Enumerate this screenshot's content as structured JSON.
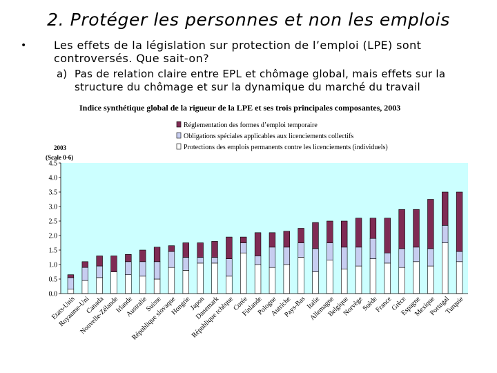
{
  "slide": {
    "title": "2. Protéger les personnes et non les emplois",
    "bullet": "•",
    "point": "Les effets de la législation sur  protection de l’emploi (LPE) sont controversés. Que sait-on?",
    "sub_letter": "a)",
    "sub_point": "Pas de relation claire entre EPL et chômage global, mais effets sur la structure du chômage et sur la dynamique du marché du travail"
  },
  "colors": {
    "plot_bg": "#ccffff",
    "temporary": "#7f2b54",
    "collective": "#c7cdf0",
    "individual": "#ffffff"
  },
  "chart_data": {
    "type": "bar",
    "stacked": true,
    "title": "Indice synthétique global de la rigueur de la LPE et ses trois principales composantes, 2003",
    "ylabel": "2003",
    "ylabel_sub": "(Scale 0-6)",
    "ylim": [
      0,
      4.5
    ],
    "yticks": [
      "0.0",
      "0.5",
      "1.0",
      "1.5",
      "2.0",
      "2.5",
      "3.0",
      "3.5",
      "4.0",
      "4.5"
    ],
    "legend": [
      "Réglementation des formes d’emploi temporaire",
      "Obligations spéciales applicables aux licenciements collectifs",
      "Protections des emplois permanents contre les licenciements (individuels)"
    ],
    "categories": [
      "Etats-Unis",
      "Royaume-Uni",
      "Canada",
      "Nouvelle-Zélande",
      "Irlande",
      "Australie",
      "Suisse",
      "République slovaque",
      "Hongrie",
      "Japon",
      "Danemark",
      "République tchèque",
      "Corée",
      "Finlande",
      "Pologne",
      "Autriche",
      "Pays-Bas",
      "Italie",
      "Allemagne",
      "Belgique",
      "Norvège",
      "Suède",
      "France",
      "Grèce",
      "Espagne",
      "Mexique",
      "Portugal",
      "Turquie"
    ],
    "series": [
      {
        "name": "Protections des emplois permanents contre les licenciements (individuels)",
        "values": [
          0.15,
          0.45,
          0.55,
          0.75,
          0.65,
          0.6,
          0.5,
          0.9,
          0.8,
          1.05,
          1.05,
          0.6,
          1.4,
          1.0,
          0.9,
          1.0,
          1.25,
          0.75,
          1.15,
          0.85,
          0.95,
          1.2,
          1.05,
          0.9,
          1.1,
          0.95,
          1.75,
          1.1
        ]
      },
      {
        "name": "Obligations spéciales applicables aux licenciements collectifs",
        "values": [
          0.4,
          0.45,
          0.4,
          0.0,
          0.45,
          0.5,
          0.6,
          0.55,
          0.45,
          0.2,
          0.2,
          0.6,
          0.35,
          0.3,
          0.7,
          0.6,
          0.5,
          0.8,
          0.6,
          0.75,
          0.65,
          0.7,
          0.35,
          0.65,
          0.5,
          0.6,
          0.6,
          0.35
        ]
      },
      {
        "name": "Réglementation des formes d’emploi temporaire",
        "values": [
          0.1,
          0.2,
          0.35,
          0.55,
          0.25,
          0.4,
          0.5,
          0.2,
          0.5,
          0.5,
          0.55,
          0.75,
          0.2,
          0.8,
          0.5,
          0.55,
          0.5,
          0.9,
          0.75,
          0.9,
          1.0,
          0.7,
          1.2,
          1.35,
          1.3,
          1.7,
          1.15,
          2.05
        ]
      }
    ]
  }
}
